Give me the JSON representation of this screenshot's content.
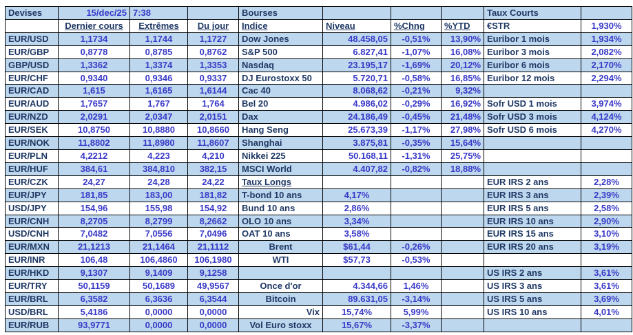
{
  "colors": {
    "fill": "#BDD7EE",
    "label": "#1F3864",
    "value": "#3939C8",
    "border": "#000000"
  },
  "devises": {
    "header": "Devises",
    "date": "15/dec/25",
    "time": "7:38",
    "columns": [
      "Dernier cours",
      "Extrêmes",
      "Du jour"
    ],
    "rows": [
      {
        "pair": "EUR/USD",
        "dernier": "1,1734",
        "extremes": "1,1744",
        "du_jour": "1,1727"
      },
      {
        "pair": "EUR/GBP",
        "dernier": "0,8778",
        "extremes": "0,8785",
        "du_jour": "0,8762"
      },
      {
        "pair": "GBP/USD",
        "dernier": "1,3362",
        "extremes": "1,3374",
        "du_jour": "1,3353"
      },
      {
        "pair": "EUR/CHF",
        "dernier": "0,9340",
        "extremes": "0,9346",
        "du_jour": "0,9337"
      },
      {
        "pair": "EUR/CAD",
        "dernier": "1,615",
        "extremes": "1,6165",
        "du_jour": "1,6144"
      },
      {
        "pair": "EUR/AUD",
        "dernier": "1,7657",
        "extremes": "1,767",
        "du_jour": "1,764"
      },
      {
        "pair": "EUR/NZD",
        "dernier": "2,0291",
        "extremes": "2,0347",
        "du_jour": "2,0151"
      },
      {
        "pair": "EUR/SEK",
        "dernier": "10,8750",
        "extremes": "10,8880",
        "du_jour": "10,8660"
      },
      {
        "pair": "EUR/NOK",
        "dernier": "11,8802",
        "extremes": "11,8980",
        "du_jour": "11,8607"
      },
      {
        "pair": "EUR/PLN",
        "dernier": "4,2212",
        "extremes": "4,223",
        "du_jour": "4,210"
      },
      {
        "pair": "EUR/HUF",
        "dernier": "384,61",
        "extremes": "384,810",
        "du_jour": "382,15"
      },
      {
        "pair": "EUR/CZK",
        "dernier": "24,27",
        "extremes": "24,28",
        "du_jour": "24,22"
      },
      {
        "pair": "EUR/JPY",
        "dernier": "181,85",
        "extremes": "183,00",
        "du_jour": "181,82"
      },
      {
        "pair": "USD/JPY",
        "dernier": "154,96",
        "extremes": "155,98",
        "du_jour": "154,92"
      },
      {
        "pair": "EUR/CNH",
        "dernier": "8,2705",
        "extremes": "8,2799",
        "du_jour": "8,2662"
      },
      {
        "pair": "USD/CNH",
        "dernier": "7,0482",
        "extremes": "7,0556",
        "du_jour": "7,0496"
      },
      {
        "pair": "EUR/MXN",
        "dernier": "21,1213",
        "extremes": "21,1464",
        "du_jour": "21,1112"
      },
      {
        "pair": "EUR/INR",
        "dernier": "106,48",
        "extremes": "106,4860",
        "du_jour": "106,1980"
      },
      {
        "pair": "EUR/HKD",
        "dernier": "9,1307",
        "extremes": "9,1409",
        "du_jour": "9,1258"
      },
      {
        "pair": "EUR/TRY",
        "dernier": "50,1159",
        "extremes": "50,1689",
        "du_jour": "49,9567"
      },
      {
        "pair": "EUR/BRL",
        "dernier": "6,3582",
        "extremes": "6,3636",
        "du_jour": "6,3544"
      },
      {
        "pair": "USD/BRL",
        "dernier": "5,4186",
        "extremes": "0,0000",
        "du_jour": "0,0000"
      },
      {
        "pair": "EUR/RUB",
        "dernier": "93,9771",
        "extremes": "0,0000",
        "du_jour": "0,0000"
      }
    ]
  },
  "bourses": {
    "header": "Bourses",
    "columns": [
      "Indice",
      "Niveau",
      "%Chng",
      "%YTD"
    ],
    "rows": [
      {
        "label": "Dow Jones",
        "niveau": "48.458,05",
        "chng": "-0,51%",
        "ytd": "13,90%"
      },
      {
        "label": "S&P 500",
        "niveau": "6.827,41",
        "chng": "-1,07%",
        "ytd": "16,08%"
      },
      {
        "label": "Nasdaq",
        "niveau": "23.195,17",
        "chng": "-1,69%",
        "ytd": "20,12%"
      },
      {
        "label": "DJ Eurostoxx 50",
        "niveau": "5.720,71",
        "chng": "-0,58%",
        "ytd": "16,85%"
      },
      {
        "label": "Cac 40",
        "niveau": "8.068,62",
        "chng": "-0,21%",
        "ytd": "9,32%"
      },
      {
        "label": "Bel 20",
        "niveau": "4.986,02",
        "chng": "-0,29%",
        "ytd": "16,92%"
      },
      {
        "label": "Dax",
        "niveau": "24.186,49",
        "chng": "-0,45%",
        "ytd": "21,48%"
      },
      {
        "label": "Hang Seng",
        "niveau": "25.673,39",
        "chng": "-1,17%",
        "ytd": "27,98%"
      },
      {
        "label": "Shanghai",
        "niveau": "3.875,81",
        "chng": "-0,35%",
        "ytd": "15,64%"
      },
      {
        "label": "Nikkei 225",
        "niveau": "50.168,11",
        "chng": "-1,31%",
        "ytd": "25,75%"
      },
      {
        "label": "MSCI World",
        "niveau": "4.407,82",
        "chng": "-0,82%",
        "ytd": "18,88%"
      },
      {
        "label": "Taux Longs",
        "niveau": "",
        "chng": "",
        "ytd": "",
        "underline": true
      },
      {
        "label": "T-bond 10 ans",
        "niveau": "4,17%",
        "chng": "",
        "ytd": "",
        "niveau_align": "center"
      },
      {
        "label": "Bund 10 ans",
        "niveau": "2,86%",
        "chng": "",
        "ytd": "",
        "niveau_align": "center"
      },
      {
        "label": "OLO 10 ans",
        "niveau": "3,34%",
        "chng": "",
        "ytd": "",
        "niveau_align": "center"
      },
      {
        "label": "OAT 10 ans",
        "niveau": "3,58%",
        "chng": "",
        "ytd": "",
        "niveau_align": "center"
      },
      {
        "label": "Brent",
        "niveau": "$61,44",
        "chng": "-0,26%",
        "ytd": "",
        "label_align": "center",
        "niveau_align": "center"
      },
      {
        "label": "WTI",
        "niveau": "$57,73",
        "chng": "-0,53%",
        "ytd": "",
        "label_align": "center",
        "niveau_align": "center"
      },
      {
        "label": "",
        "niveau": "",
        "chng": "",
        "ytd": ""
      },
      {
        "label": "Once d'or",
        "niveau": "4.344,66",
        "chng": "1,46%",
        "ytd": "",
        "label_align": "center"
      },
      {
        "label": "Bitcoin",
        "niveau": "89.631,05",
        "chng": "-3,14%",
        "ytd": "",
        "label_align": "center"
      },
      {
        "label": "Vix",
        "niveau": "15,74%",
        "chng": "5,99%",
        "ytd": "",
        "label_align": "right",
        "niveau_align": "center"
      },
      {
        "label": "Vol Euro stoxx",
        "niveau": "15,67%",
        "chng": "-3,37%",
        "ytd": "",
        "label_align": "center",
        "niveau_align": "center"
      }
    ]
  },
  "taux_courts": {
    "header": "Taux Courts",
    "estr": {
      "label": "€STR",
      "value": "1,930%"
    },
    "rows": [
      {
        "label": "Euribor 1 mois",
        "value": "1,934%"
      },
      {
        "label": "Euribor 3 mois",
        "value": "2,082%"
      },
      {
        "label": "Euribor 6 mois",
        "value": "2,170%"
      },
      {
        "label": "Euribor 12 mois",
        "value": "2,294%"
      },
      {
        "label": "",
        "value": ""
      },
      {
        "label": "Sofr USD 1 mois",
        "value": "3,974%"
      },
      {
        "label": "Sofr USD 3 mois",
        "value": "4,124%"
      },
      {
        "label": "Sofr USD 6 mois",
        "value": "4,270%"
      },
      {
        "label": "",
        "value": ""
      },
      {
        "label": "",
        "value": ""
      },
      {
        "label": "",
        "value": ""
      },
      {
        "label": "EUR IRS 2 ans",
        "value": "2,28%"
      },
      {
        "label": "EUR IRS 3 ans",
        "value": "2,39%"
      },
      {
        "label": "EUR IRS 5 ans",
        "value": "2,58%"
      },
      {
        "label": "EUR IRS 10 ans",
        "value": "2,90%"
      },
      {
        "label": "EUR IRS 15 ans",
        "value": "3,10%"
      },
      {
        "label": "EUR IRS 20 ans",
        "value": "3,19%"
      },
      {
        "label": "",
        "value": ""
      },
      {
        "label": "US IRS 2 ans",
        "value": "3,61%"
      },
      {
        "label": "US IRS 3 ans",
        "value": "3,61%"
      },
      {
        "label": "US IRS 5 ans",
        "value": "3,69%"
      },
      {
        "label": "US IRS 10 ans",
        "value": "4,01%"
      },
      {
        "label": "",
        "value": ""
      }
    ]
  }
}
